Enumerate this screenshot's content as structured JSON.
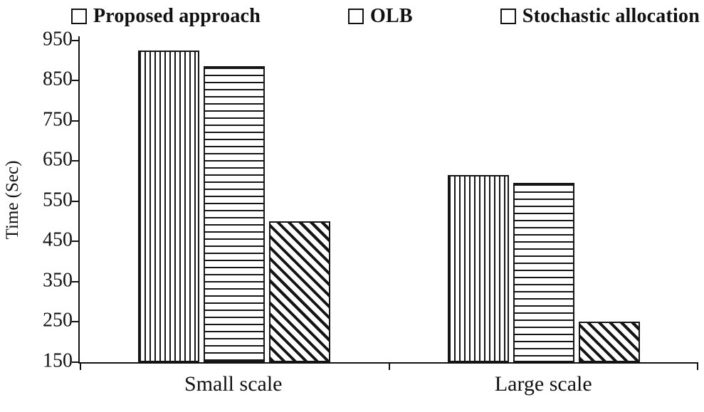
{
  "chart_data": {
    "type": "bar",
    "title": "",
    "categories": [
      "Small scale",
      "Large scale"
    ],
    "series": [
      {
        "name": "Proposed approach",
        "pattern": "vertical-lines",
        "values": [
          925,
          615
        ]
      },
      {
        "name": "OLB",
        "pattern": "horizontal-lines",
        "values": [
          885,
          595
        ]
      },
      {
        "name": "Stochastic allocation",
        "pattern": "diagonal-lines",
        "values": [
          500,
          250
        ]
      }
    ],
    "xlabel": "",
    "ylabel": "Time (Sec)",
    "yticks": [
      150,
      250,
      350,
      450,
      550,
      650,
      750,
      850,
      950
    ],
    "ylim": [
      150,
      960
    ],
    "grid": false,
    "legend_position": "top",
    "colors": {
      "ink": "#111111",
      "background": "#ffffff"
    }
  }
}
